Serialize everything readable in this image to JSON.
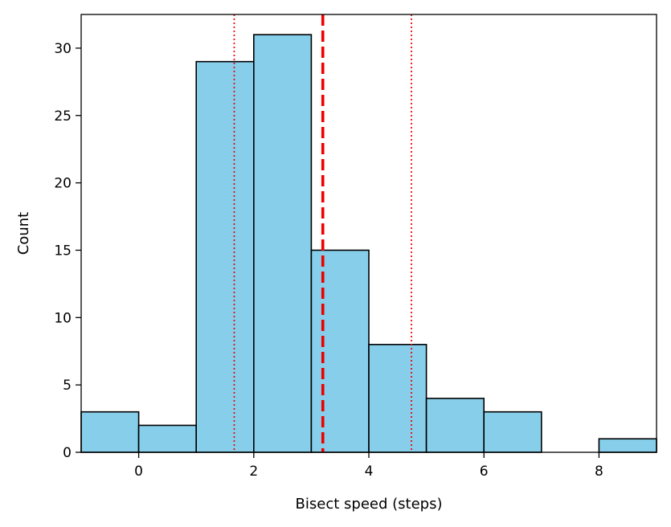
{
  "chart_data": {
    "type": "bar",
    "subtype": "histogram",
    "title": "",
    "xlabel": "Bisect speed (steps)",
    "ylabel": "Count",
    "xlim": [
      -1,
      9
    ],
    "ylim": [
      0,
      32.5
    ],
    "bins": [
      {
        "start": -1,
        "end": 0,
        "count": 3
      },
      {
        "start": 0,
        "end": 1,
        "count": 2
      },
      {
        "start": 1,
        "end": 2,
        "count": 29
      },
      {
        "start": 2,
        "end": 3,
        "count": 31
      },
      {
        "start": 3,
        "end": 4,
        "count": 15
      },
      {
        "start": 4,
        "end": 5,
        "count": 8
      },
      {
        "start": 5,
        "end": 6,
        "count": 4
      },
      {
        "start": 6,
        "end": 7,
        "count": 3
      },
      {
        "start": 7,
        "end": 8,
        "count": 0
      },
      {
        "start": 8,
        "end": 9,
        "count": 1
      }
    ],
    "x_ticks": [
      0,
      2,
      4,
      6,
      8
    ],
    "y_ticks": [
      0,
      5,
      10,
      15,
      20,
      25,
      30
    ],
    "reference_lines": [
      {
        "x": 3.2,
        "style": "dashed",
        "color": "#ee0000"
      },
      {
        "x": 1.66,
        "style": "dotted",
        "color": "#ee0000"
      },
      {
        "x": 4.74,
        "style": "dotted",
        "color": "#ee0000"
      }
    ],
    "bar_color": "#87ceeb",
    "edge_color": "#000000",
    "grid": false,
    "legend": "none"
  }
}
